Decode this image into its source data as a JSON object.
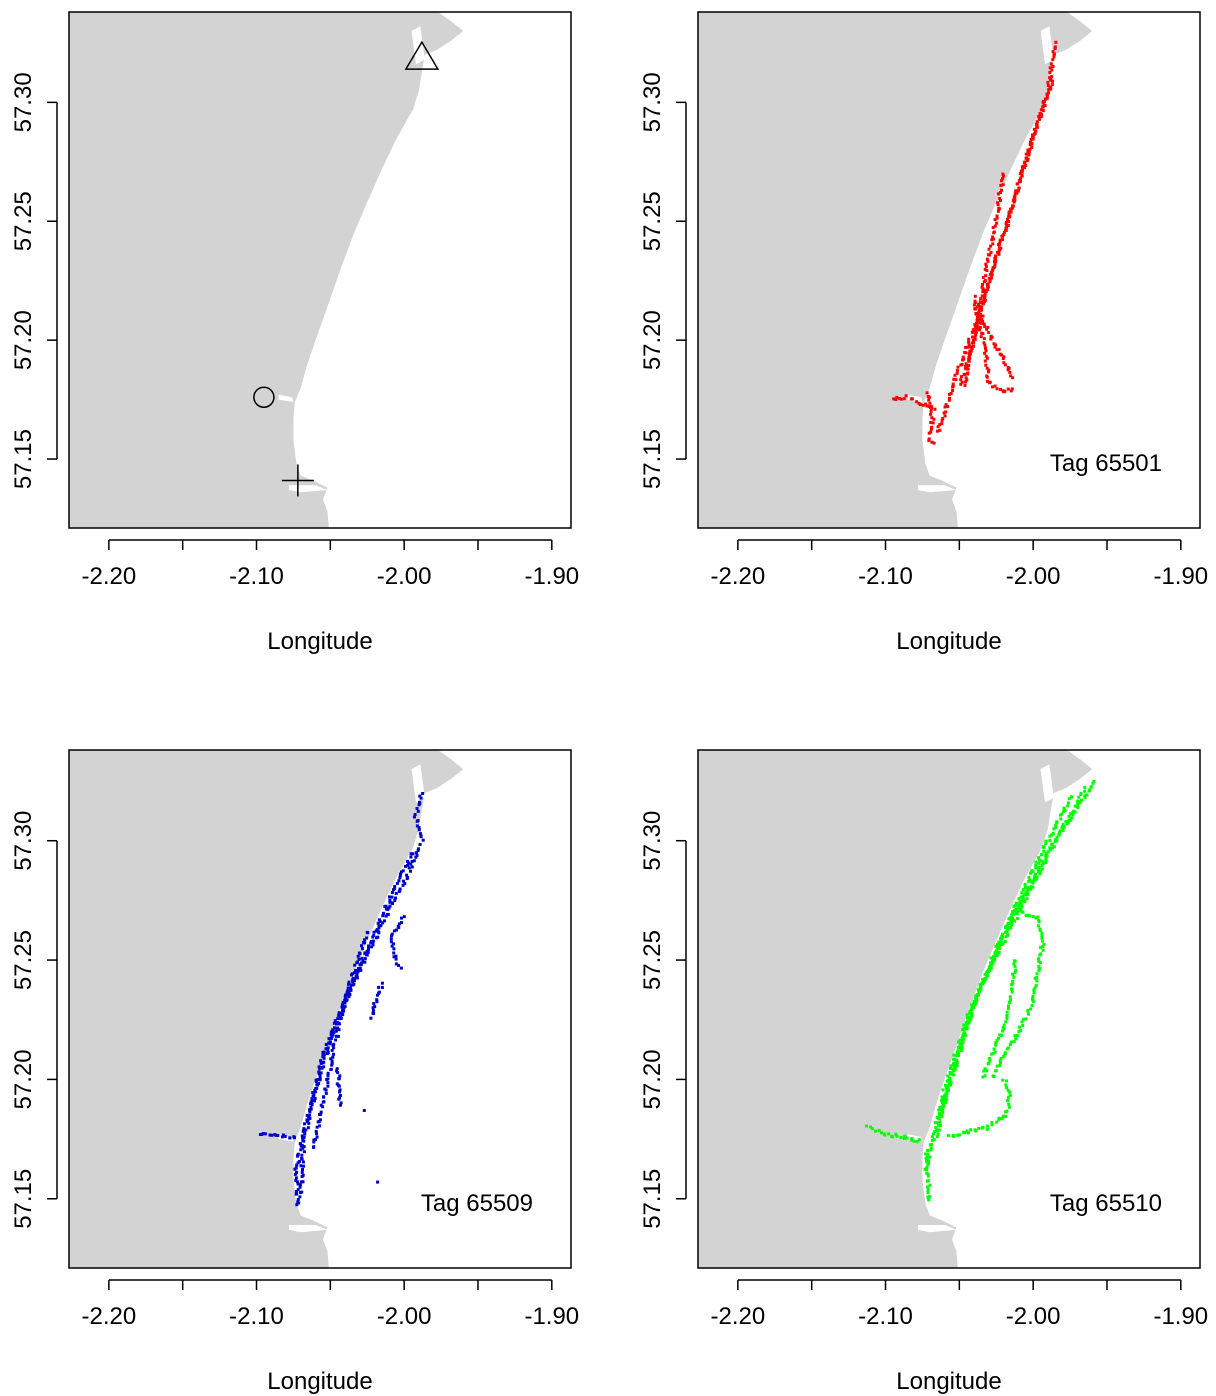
{
  "chart_data": [
    {
      "type": "scatter",
      "xlabel": "Longitude",
      "xlim": [
        -2.227,
        -1.887
      ],
      "ylim": [
        57.121,
        57.338
      ],
      "x_ticks": [
        -2.2,
        -2.15,
        -2.1,
        -2.05,
        -2.0,
        -1.95,
        -1.9
      ],
      "x_tick_labels": [
        "-2.20",
        "",
        "-2.10",
        "",
        "-2.00",
        "",
        "-1.90"
      ],
      "y_ticks": [
        57.15,
        57.2,
        57.25,
        57.3
      ],
      "y_tick_labels": [
        "57.15",
        "57.20",
        "57.25",
        "57.30"
      ],
      "land_color": "#d3d3d3",
      "markers": [
        {
          "shape": "triangle",
          "x": -1.988,
          "y": 57.319
        },
        {
          "shape": "circle",
          "x": -2.095,
          "y": 57.176
        },
        {
          "shape": "plus",
          "x": -2.072,
          "y": 57.141
        }
      ],
      "annotation": ""
    },
    {
      "type": "scatter",
      "xlabel": "Longitude",
      "xlim": [
        -2.227,
        -1.887
      ],
      "ylim": [
        57.121,
        57.338
      ],
      "x_ticks": [
        -2.2,
        -2.15,
        -2.1,
        -2.05,
        -2.0,
        -1.95,
        -1.9
      ],
      "x_tick_labels": [
        "-2.20",
        "",
        "-2.10",
        "",
        "-2.00",
        "",
        "-1.90"
      ],
      "y_ticks": [
        57.15,
        57.2,
        57.25,
        57.3
      ],
      "y_tick_labels": [
        "57.15",
        "57.20",
        "57.25",
        "57.30"
      ],
      "land_color": "#d3d3d3",
      "annotation": "Tag 65501",
      "point_color": "#ff0000",
      "tracks": [
        [
          [
            -1.985,
            57.325
          ],
          [
            -1.99,
            57.305
          ],
          [
            -2.005,
            57.275
          ],
          [
            -2.022,
            57.24
          ],
          [
            -2.037,
            57.21
          ],
          [
            -2.052,
            57.185
          ],
          [
            -2.065,
            57.16
          ]
        ],
        [
          [
            -1.987,
            57.31
          ],
          [
            -2.0,
            57.285
          ],
          [
            -2.015,
            57.255
          ],
          [
            -2.03,
            57.225
          ],
          [
            -2.04,
            57.2
          ],
          [
            -2.05,
            57.18
          ]
        ],
        [
          [
            -2.02,
            57.27
          ],
          [
            -2.027,
            57.245
          ],
          [
            -2.035,
            57.22
          ],
          [
            -2.042,
            57.195
          ],
          [
            -2.046,
            57.18
          ]
        ],
        [
          [
            -2.04,
            57.218
          ],
          [
            -2.032,
            57.195
          ],
          [
            -2.03,
            57.182
          ],
          [
            -2.02,
            57.178
          ],
          [
            -2.012,
            57.18
          ]
        ],
        [
          [
            -2.035,
            57.21
          ],
          [
            -2.028,
            57.2
          ],
          [
            -2.018,
            57.19
          ],
          [
            -2.013,
            57.183
          ]
        ],
        [
          [
            -2.095,
            57.175
          ],
          [
            -2.085,
            57.176
          ],
          [
            -2.075,
            57.173
          ],
          [
            -2.066,
            57.17
          ]
        ],
        [
          [
            -2.072,
            57.178
          ],
          [
            -2.068,
            57.168
          ],
          [
            -2.07,
            57.158
          ],
          [
            -2.066,
            57.156
          ]
        ]
      ]
    },
    {
      "type": "scatter",
      "xlabel": "Longitude",
      "xlim": [
        -2.227,
        -1.887
      ],
      "ylim": [
        57.121,
        57.338
      ],
      "x_ticks": [
        -2.2,
        -2.15,
        -2.1,
        -2.05,
        -2.0,
        -1.95,
        -1.9
      ],
      "x_tick_labels": [
        "-2.20",
        "",
        "-2.10",
        "",
        "-2.00",
        "",
        "-1.90"
      ],
      "y_ticks": [
        57.15,
        57.2,
        57.25,
        57.3
      ],
      "y_tick_labels": [
        "57.15",
        "57.20",
        "57.25",
        "57.30"
      ],
      "land_color": "#d3d3d3",
      "annotation": "Tag 65509",
      "point_color": "#0000cd",
      "tracks": [
        [
          [
            -1.988,
            57.32
          ],
          [
            -1.992,
            57.31
          ],
          [
            -1.988,
            57.3
          ],
          [
            -1.998,
            57.285
          ],
          [
            -2.015,
            57.265
          ],
          [
            -2.035,
            57.24
          ],
          [
            -2.055,
            57.21
          ],
          [
            -2.065,
            57.185
          ],
          [
            -2.073,
            57.163
          ],
          [
            -2.072,
            57.146
          ]
        ],
        [
          [
            -1.995,
            57.295
          ],
          [
            -2.01,
            57.275
          ],
          [
            -2.03,
            57.248
          ],
          [
            -2.048,
            57.22
          ],
          [
            -2.06,
            57.195
          ],
          [
            -2.068,
            57.175
          ],
          [
            -2.07,
            57.15
          ]
        ],
        [
          [
            -2.025,
            57.262
          ],
          [
            -2.037,
            57.24
          ],
          [
            -2.048,
            57.212
          ],
          [
            -2.055,
            57.19
          ],
          [
            -2.062,
            57.17
          ]
        ],
        [
          [
            -2.0,
            57.268
          ],
          [
            -2.008,
            57.26
          ],
          [
            -2.006,
            57.25
          ],
          [
            -2.002,
            57.246
          ]
        ],
        [
          [
            -2.015,
            57.24
          ],
          [
            -2.02,
            57.232
          ],
          [
            -2.022,
            57.225
          ]
        ],
        [
          [
            -2.098,
            57.177
          ],
          [
            -2.09,
            57.177
          ],
          [
            -2.08,
            57.176
          ],
          [
            -2.072,
            57.176
          ]
        ],
        [
          [
            -2.045,
            57.205
          ],
          [
            -2.043,
            57.188
          ]
        ]
      ],
      "points": [
        [
          -2.027,
          57.187
        ],
        [
          -2.018,
          57.157
        ]
      ]
    },
    {
      "type": "scatter",
      "xlabel": "Longitude",
      "xlim": [
        -2.227,
        -1.887
      ],
      "ylim": [
        57.121,
        57.338
      ],
      "x_ticks": [
        -2.2,
        -2.15,
        -2.1,
        -2.05,
        -2.0,
        -1.95,
        -1.9
      ],
      "x_tick_labels": [
        "-2.20",
        "",
        "-2.10",
        "",
        "-2.00",
        "",
        "-1.90"
      ],
      "y_ticks": [
        57.15,
        57.2,
        57.25,
        57.3
      ],
      "y_tick_labels": [
        "57.15",
        "57.20",
        "57.25",
        "57.30"
      ],
      "land_color": "#d3d3d3",
      "annotation": "Tag 65510",
      "point_color": "#00ff00",
      "tracks": [
        [
          [
            -1.965,
            57.322
          ],
          [
            -1.975,
            57.31
          ],
          [
            -1.995,
            57.29
          ],
          [
            -2.02,
            57.26
          ],
          [
            -2.045,
            57.225
          ],
          [
            -2.06,
            57.195
          ],
          [
            -2.07,
            57.17
          ],
          [
            -2.073,
            57.162
          ]
        ],
        [
          [
            -1.958,
            57.325
          ],
          [
            -1.985,
            57.3
          ],
          [
            -2.01,
            57.27
          ],
          [
            -2.035,
            57.24
          ],
          [
            -2.052,
            57.21
          ],
          [
            -2.063,
            57.185
          ]
        ],
        [
          [
            -1.975,
            57.318
          ],
          [
            -2.0,
            57.288
          ],
          [
            -2.025,
            57.255
          ],
          [
            -2.045,
            57.222
          ],
          [
            -2.058,
            57.195
          ],
          [
            -2.066,
            57.175
          ]
        ],
        [
          [
            -2.01,
            57.27
          ],
          [
            -1.997,
            57.268
          ],
          [
            -1.993,
            57.258
          ],
          [
            -1.997,
            57.245
          ],
          [
            -2.0,
            57.232
          ],
          [
            -2.01,
            57.22
          ],
          [
            -2.02,
            57.21
          ],
          [
            -2.028,
            57.2
          ]
        ],
        [
          [
            -2.012,
            57.25
          ],
          [
            -2.015,
            57.235
          ],
          [
            -2.02,
            57.222
          ],
          [
            -2.028,
            57.21
          ],
          [
            -2.035,
            57.2
          ]
        ],
        [
          [
            -2.02,
            57.2
          ],
          [
            -2.015,
            57.195
          ],
          [
            -2.018,
            57.185
          ],
          [
            -2.03,
            57.18
          ],
          [
            -2.045,
            57.178
          ],
          [
            -2.058,
            57.176
          ]
        ],
        [
          [
            -2.112,
            57.18
          ],
          [
            -2.1,
            57.177
          ],
          [
            -2.088,
            57.176
          ],
          [
            -2.075,
            57.174
          ]
        ],
        [
          [
            -2.072,
            57.17
          ],
          [
            -2.071,
            57.158
          ],
          [
            -2.07,
            57.148
          ]
        ]
      ]
    }
  ]
}
